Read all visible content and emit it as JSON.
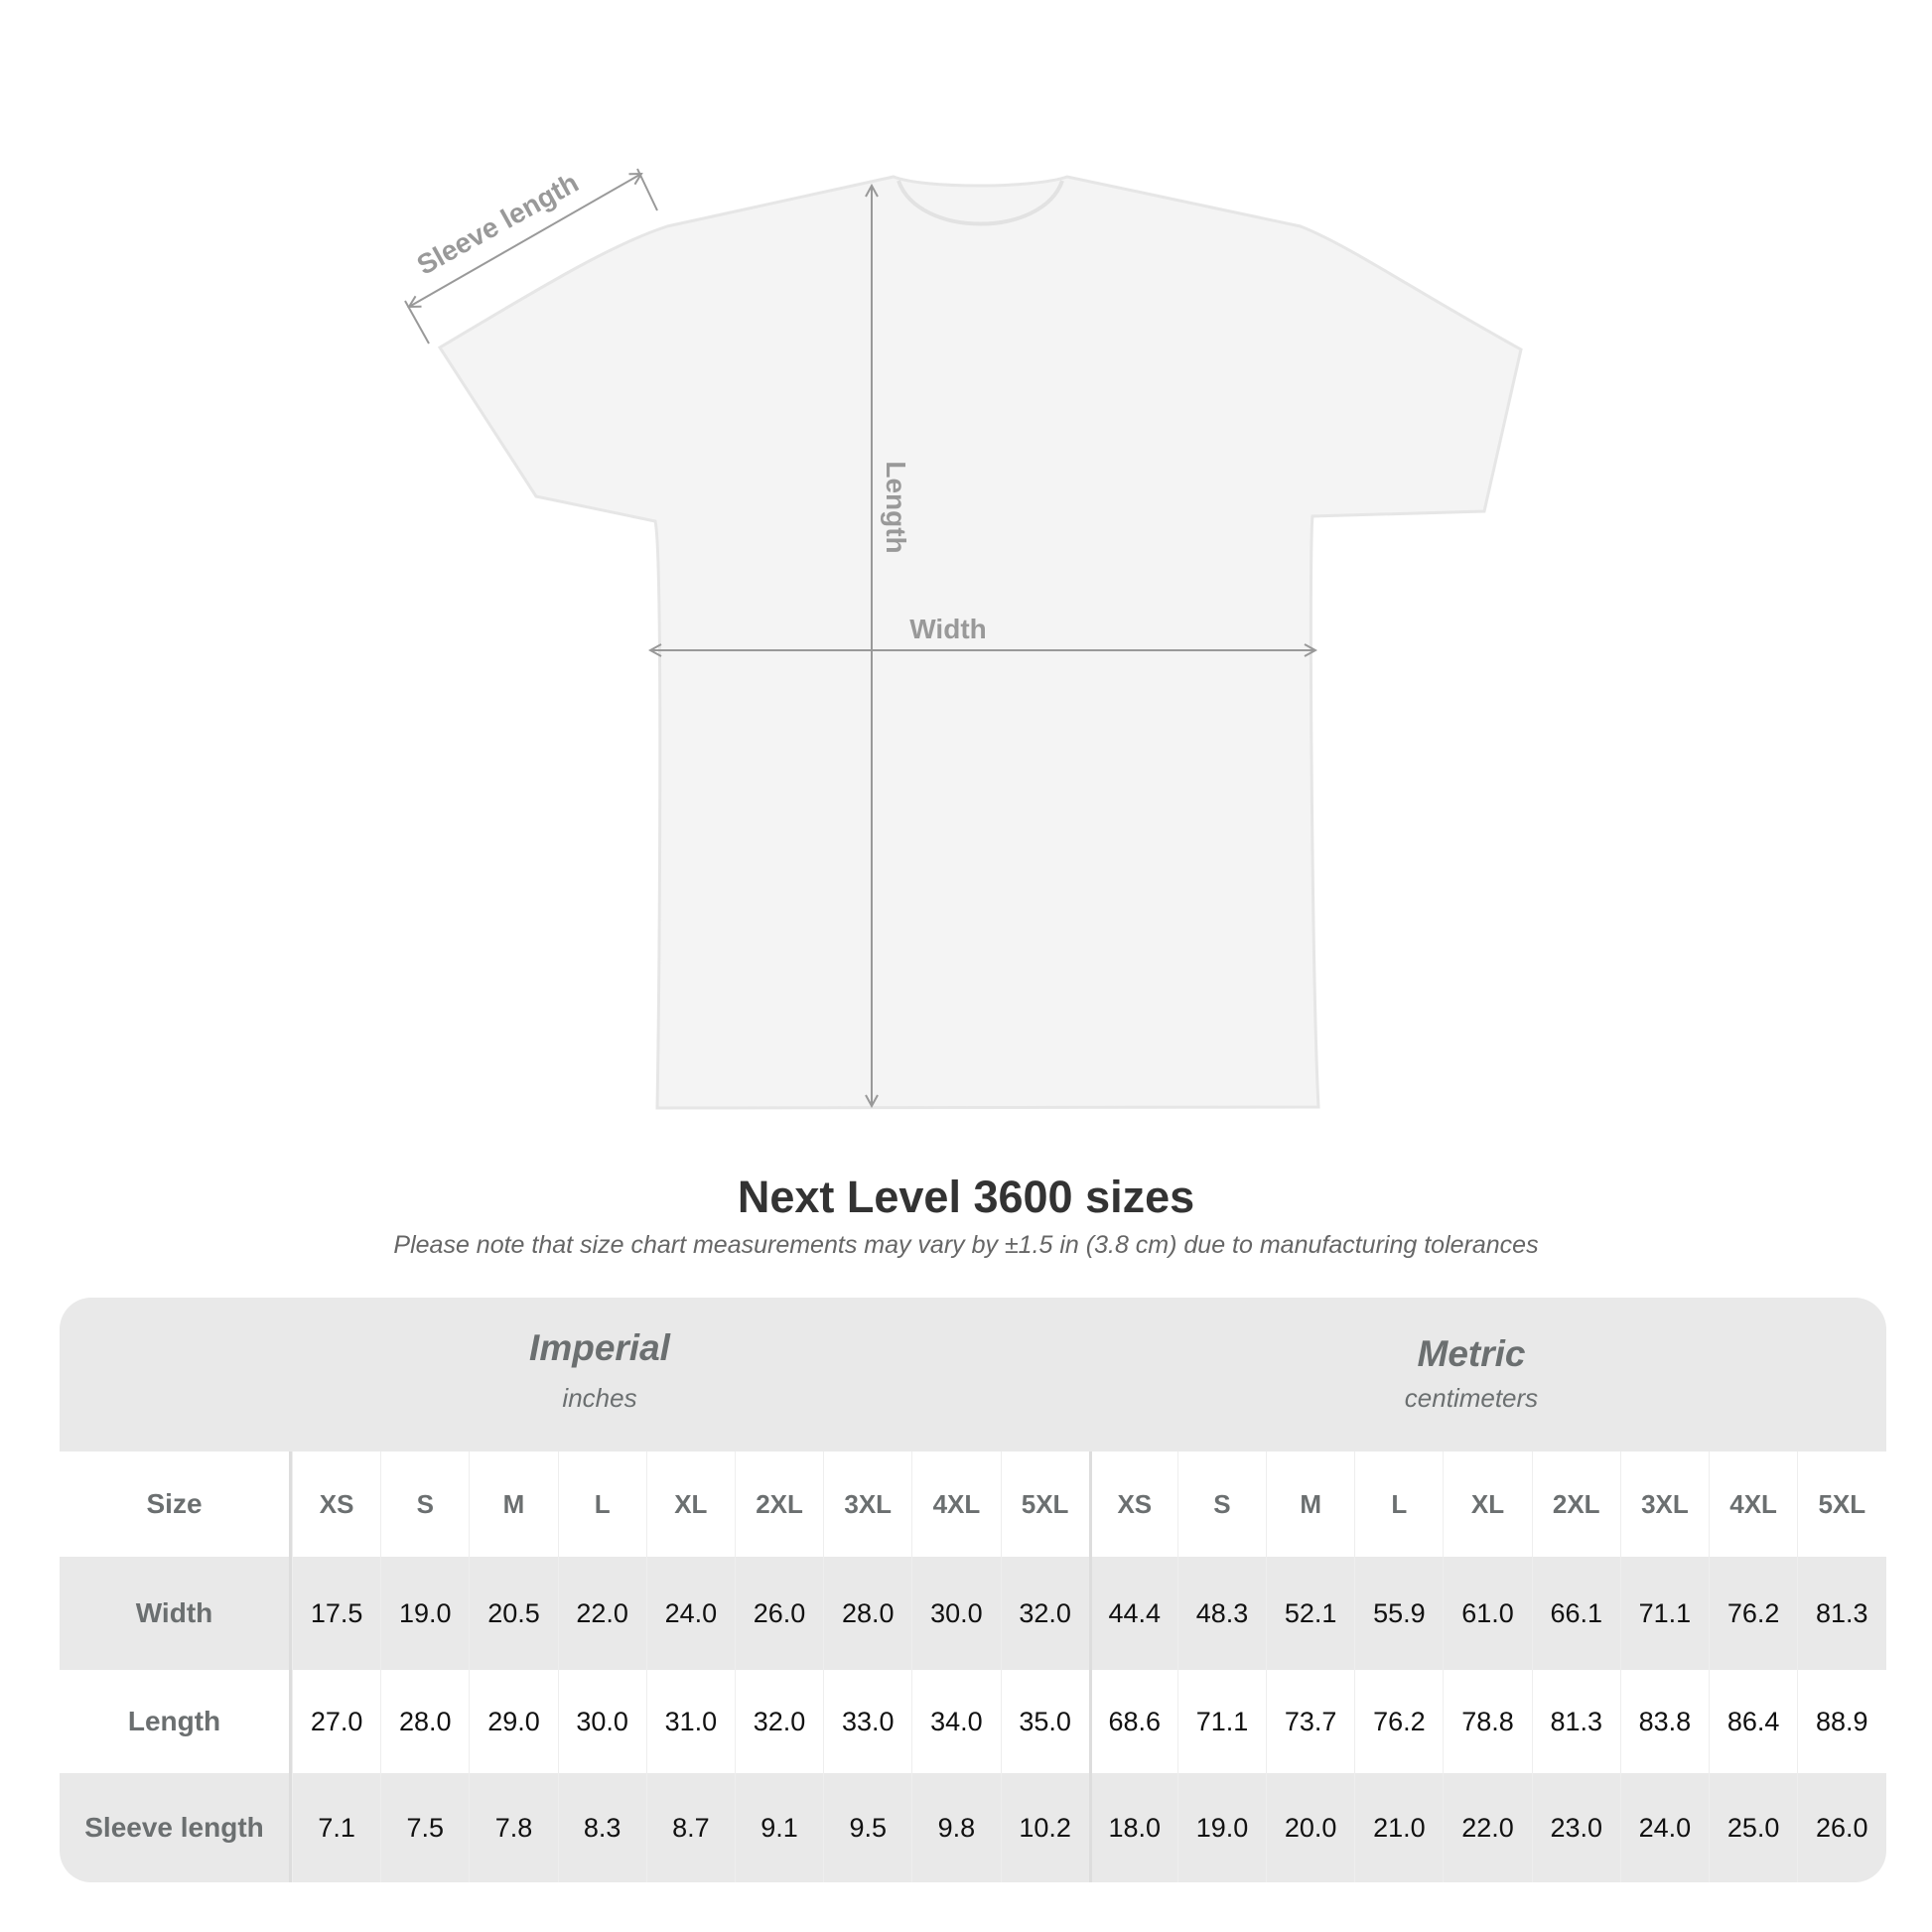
{
  "diagram": {
    "labels": {
      "sleeve": "Sleeve length",
      "length": "Length",
      "width": "Width"
    }
  },
  "title": "Next Level 3600 sizes",
  "subtitle": "Please note that size chart measurements may vary by ±1.5 in (3.8 cm) due to manufacturing tolerances",
  "table": {
    "imperial": {
      "name": "Imperial",
      "unit": "inches"
    },
    "metric": {
      "name": "Metric",
      "unit": "centimeters"
    },
    "rows": [
      {
        "label": "Size",
        "values": [
          "XS",
          "S",
          "M",
          "L",
          "XL",
          "2XL",
          "3XL",
          "4XL",
          "5XL",
          "XS",
          "S",
          "M",
          "L",
          "XL",
          "2XL",
          "3XL",
          "4XL",
          "5XL"
        ]
      },
      {
        "label": "Width",
        "values": [
          "17.5",
          "19.0",
          "20.5",
          "22.0",
          "24.0",
          "26.0",
          "28.0",
          "30.0",
          "32.0",
          "44.4",
          "48.3",
          "52.1",
          "55.9",
          "61.0",
          "66.1",
          "71.1",
          "76.2",
          "81.3"
        ]
      },
      {
        "label": "Length",
        "values": [
          "27.0",
          "28.0",
          "29.0",
          "30.0",
          "31.0",
          "32.0",
          "33.0",
          "34.0",
          "35.0",
          "68.6",
          "71.1",
          "73.7",
          "76.2",
          "78.8",
          "81.3",
          "83.8",
          "86.4",
          "88.9"
        ]
      },
      {
        "label": "Sleeve length",
        "values": [
          "7.1",
          "7.5",
          "7.8",
          "8.3",
          "8.7",
          "9.1",
          "9.5",
          "9.8",
          "10.2",
          "18.0",
          "19.0",
          "20.0",
          "21.0",
          "22.0",
          "23.0",
          "24.0",
          "25.0",
          "26.0"
        ]
      }
    ]
  }
}
